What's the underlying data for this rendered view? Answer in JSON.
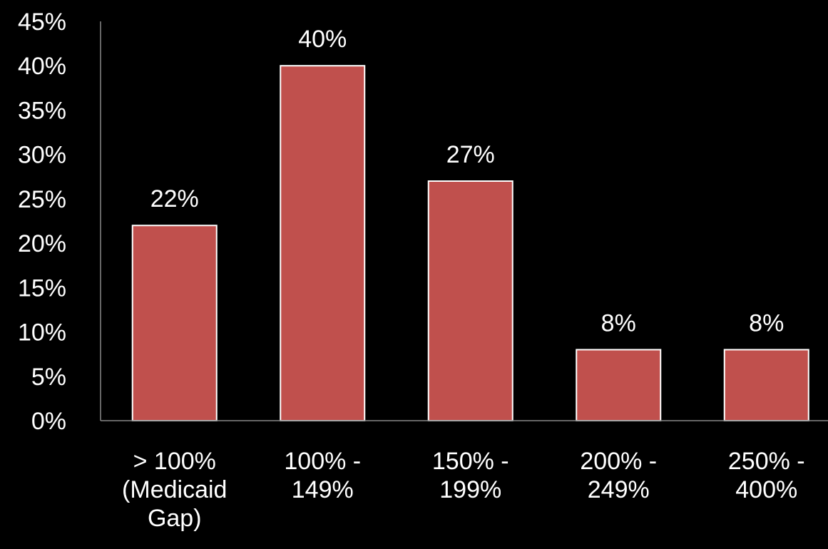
{
  "chart_data": {
    "type": "bar",
    "title": "",
    "xlabel": "",
    "ylabel": "",
    "categories": [
      "> 100% (Medicaid Gap)",
      "100% - 149%",
      "150% - 199%",
      "200% - 249%",
      "250% - 400%"
    ],
    "category_lines": [
      [
        "> 100%",
        "(Medicaid",
        "Gap)"
      ],
      [
        "100% -",
        "149%"
      ],
      [
        "150% -",
        "199%"
      ],
      [
        "200% -",
        "249%"
      ],
      [
        "250% -",
        "400%"
      ]
    ],
    "values": [
      22,
      40,
      27,
      8,
      8
    ],
    "data_labels": [
      "22%",
      "40%",
      "27%",
      "8%",
      "8%"
    ],
    "ylim": [
      0,
      45
    ],
    "yticks": [
      0,
      5,
      10,
      15,
      20,
      25,
      30,
      35,
      40,
      45
    ],
    "ytick_labels": [
      "0%",
      "5%",
      "10%",
      "15%",
      "20%",
      "25%",
      "30%",
      "35%",
      "40%",
      "45%"
    ],
    "grid": false,
    "legend": "none",
    "colors": {
      "background": "#000000",
      "bar_fill": "#c0504d",
      "bar_stroke": "#ffffff",
      "axis": "#888888",
      "text": "#ffffff"
    }
  }
}
